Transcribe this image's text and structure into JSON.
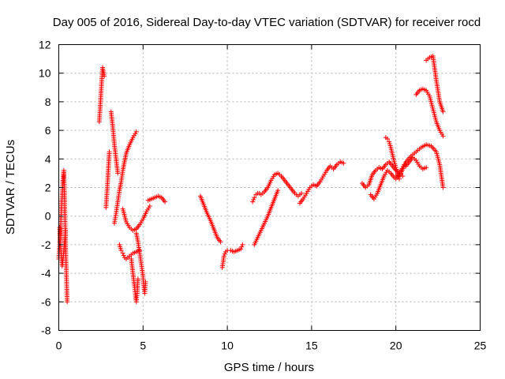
{
  "chart_data": {
    "type": "scatter",
    "title": "Day 005 of 2016, Sidereal Day-to-day VTEC variation (SDTVAR) for receiver rocd",
    "xlabel": "GPS time / hours",
    "ylabel": "SDTVAR / TECUs",
    "xlim": [
      0,
      25
    ],
    "ylim": [
      -8,
      12
    ],
    "xticks": [
      "0",
      "5",
      "10",
      "15",
      "20",
      "25"
    ],
    "yticks": [
      "-8",
      "-6",
      "-4",
      "-2",
      "0",
      "2",
      "4",
      "6",
      "8",
      "10",
      "12"
    ],
    "grid": true,
    "marker": "+",
    "color": "#ff0000",
    "segments": [
      {
        "x": [
          0.0,
          0.1,
          0.15,
          0.2,
          0.25,
          0.3,
          0.35,
          0.4,
          0.45,
          0.5
        ],
        "y": [
          -3.0,
          -1.0,
          0.5,
          1.5,
          2.5,
          3.2,
          1.0,
          -2.0,
          -4.0,
          -6.0
        ]
      },
      {
        "x": [
          0.05,
          0.1,
          0.2,
          0.3,
          0.4
        ],
        "y": [
          -0.8,
          -2.0,
          -3.5,
          -2.5,
          -1.0
        ]
      },
      {
        "x": [
          2.4,
          2.45,
          2.5,
          2.55,
          2.6,
          2.7
        ],
        "y": [
          6.6,
          7.5,
          8.5,
          9.5,
          10.4,
          9.8
        ]
      },
      {
        "x": [
          2.8,
          2.85,
          2.9,
          2.95,
          3.0
        ],
        "y": [
          0.6,
          1.5,
          2.4,
          3.5,
          4.5
        ]
      },
      {
        "x": [
          3.1,
          3.15,
          3.2,
          3.3,
          3.4,
          3.5
        ],
        "y": [
          7.3,
          6.8,
          6.3,
          5.0,
          4.0,
          3.0
        ]
      },
      {
        "x": [
          3.3,
          3.4,
          3.5,
          3.6,
          3.7,
          3.8,
          3.9,
          4.0,
          4.2,
          4.4,
          4.6
        ],
        "y": [
          -0.5,
          0.2,
          1.0,
          1.8,
          2.4,
          3.2,
          3.8,
          4.4,
          5.0,
          5.5,
          5.9
        ]
      },
      {
        "x": [
          3.6,
          3.7,
          3.8,
          3.9,
          4.0,
          4.2,
          4.4,
          4.6,
          4.8
        ],
        "y": [
          -2.0,
          -2.4,
          -2.6,
          -2.9,
          -3.0,
          -2.8,
          -2.6,
          -2.5,
          -2.4
        ]
      },
      {
        "x": [
          3.8,
          4.0,
          4.2,
          4.4,
          4.6,
          4.8
        ],
        "y": [
          0.5,
          -0.4,
          -0.8,
          -1.0,
          -0.9,
          -0.6
        ]
      },
      {
        "x": [
          4.3,
          4.4,
          4.5,
          4.55,
          4.6,
          4.65,
          4.7
        ],
        "y": [
          -3.0,
          -4.0,
          -5.0,
          -5.6,
          -6.0,
          -5.4,
          -4.4
        ]
      },
      {
        "x": [
          4.6,
          4.7,
          4.8,
          4.9,
          5.0,
          5.05,
          5.1,
          5.15
        ],
        "y": [
          -1.2,
          -1.8,
          -2.6,
          -3.4,
          -4.2,
          -5.0,
          -5.4,
          -4.6
        ]
      },
      {
        "x": [
          4.8,
          5.0,
          5.2,
          5.4
        ],
        "y": [
          -0.6,
          -0.2,
          0.3,
          0.7
        ]
      },
      {
        "x": [
          5.3,
          5.5,
          5.7,
          5.9,
          6.1,
          6.3
        ],
        "y": [
          1.1,
          1.2,
          1.3,
          1.4,
          1.3,
          1.0
        ]
      },
      {
        "x": [
          8.4,
          8.6,
          8.8,
          9.0,
          9.2,
          9.4,
          9.6
        ],
        "y": [
          1.4,
          0.8,
          0.2,
          -0.3,
          -0.9,
          -1.5,
          -1.8
        ]
      },
      {
        "x": [
          9.7,
          9.75,
          9.8,
          9.9,
          10.0,
          10.2,
          10.4,
          10.6,
          10.8,
          10.9
        ],
        "y": [
          -3.6,
          -3.2,
          -2.8,
          -2.5,
          -2.4,
          -2.4,
          -2.5,
          -2.4,
          -2.3,
          -2.0
        ]
      },
      {
        "x": [
          11.5,
          11.6,
          11.7,
          11.8,
          11.9,
          12.0,
          12.2,
          12.4,
          12.6,
          12.8,
          13.0,
          13.2,
          13.4,
          13.6,
          13.8,
          14.0,
          14.2,
          14.4
        ],
        "y": [
          1.0,
          1.3,
          1.5,
          1.6,
          1.6,
          1.5,
          1.7,
          2.0,
          2.5,
          2.9,
          3.0,
          2.8,
          2.5,
          2.2,
          1.9,
          1.6,
          1.4,
          1.6
        ]
      },
      {
        "x": [
          11.6,
          11.8,
          12.0,
          12.2,
          12.4,
          12.6,
          12.8,
          13.0
        ],
        "y": [
          -2.0,
          -1.5,
          -1.0,
          -0.5,
          0.0,
          0.6,
          1.2,
          1.8
        ]
      },
      {
        "x": [
          14.3,
          14.5,
          14.7,
          14.9,
          15.1,
          15.3,
          15.5,
          15.7,
          15.9,
          16.1,
          16.3,
          16.5,
          16.7,
          16.9
        ],
        "y": [
          0.9,
          1.2,
          1.6,
          2.0,
          2.2,
          2.1,
          2.4,
          2.8,
          3.2,
          3.5,
          3.3,
          3.6,
          3.8,
          3.7
        ]
      },
      {
        "x": [
          18.0,
          18.2,
          18.4,
          18.6,
          18.8,
          19.0,
          19.2,
          19.4,
          19.6,
          19.8,
          20.0,
          20.2,
          20.4
        ],
        "y": [
          2.3,
          2.0,
          2.2,
          2.9,
          3.2,
          3.4,
          3.3,
          3.6,
          3.8,
          3.5,
          3.2,
          3.0,
          2.8
        ]
      },
      {
        "x": [
          18.5,
          18.7,
          18.9,
          19.1,
          19.3,
          19.5,
          19.7,
          19.9,
          20.1,
          20.3,
          20.5
        ],
        "y": [
          1.5,
          1.2,
          1.6,
          2.2,
          2.8,
          3.2,
          3.0,
          2.7,
          2.9,
          3.2,
          3.6
        ]
      },
      {
        "x": [
          19.4,
          19.5,
          19.6,
          19.7,
          19.8,
          19.9,
          20.0,
          20.1,
          20.2
        ],
        "y": [
          5.5,
          5.4,
          5.2,
          4.8,
          4.3,
          3.8,
          3.4,
          3.0,
          2.6
        ]
      },
      {
        "x": [
          20.0,
          20.3,
          20.6,
          20.9,
          21.2,
          21.5,
          21.8,
          22.1,
          22.4,
          22.6,
          22.8
        ],
        "y": [
          2.6,
          3.0,
          3.8,
          4.2,
          4.5,
          4.8,
          5.0,
          4.9,
          4.5,
          3.6,
          2.0
        ]
      },
      {
        "x": [
          20.6,
          20.8,
          21.0,
          21.2,
          21.4,
          21.6,
          21.8
        ],
        "y": [
          3.5,
          3.8,
          4.1,
          3.9,
          3.5,
          3.3,
          3.4
        ]
      },
      {
        "x": [
          21.2,
          21.4,
          21.6,
          21.8,
          22.0,
          22.2,
          22.4,
          22.6,
          22.8
        ],
        "y": [
          8.5,
          8.8,
          8.9,
          8.8,
          8.4,
          7.5,
          6.6,
          6.0,
          5.6
        ]
      },
      {
        "x": [
          21.8,
          22.0,
          22.2,
          22.4,
          22.6,
          22.8
        ],
        "y": [
          10.9,
          11.1,
          11.2,
          9.5,
          8.0,
          7.3
        ]
      }
    ]
  }
}
